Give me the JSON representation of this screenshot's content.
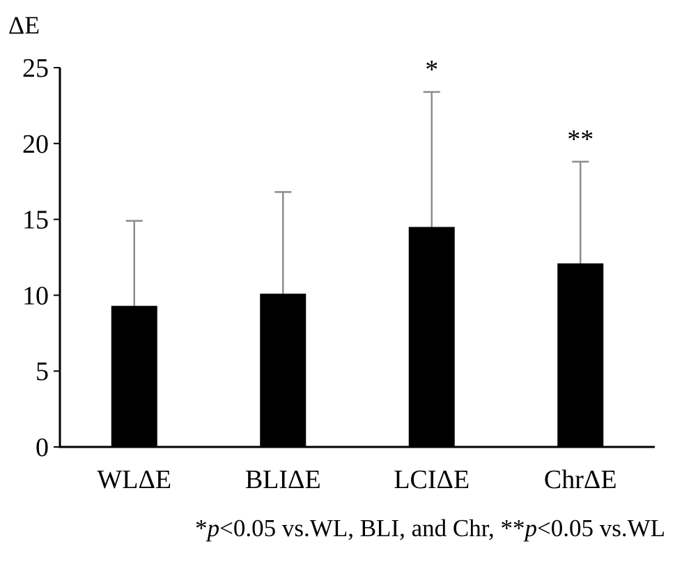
{
  "chart_data": {
    "type": "bar",
    "ylabel": "ΔE",
    "xlabel": "",
    "ylim": [
      0,
      25
    ],
    "yticks": [
      0,
      5,
      10,
      15,
      20,
      25
    ],
    "categories": [
      "WLΔE",
      "BLIΔE",
      "LCIΔE",
      "ChrΔE"
    ],
    "values": [
      9.3,
      10.1,
      14.5,
      12.1
    ],
    "error_upper": [
      14.9,
      16.8,
      23.4,
      18.8
    ],
    "significance": [
      "",
      "",
      "*",
      "**"
    ],
    "bar_color": "#000000",
    "error_color": "#8c8c8c",
    "grid": false,
    "legend": "none"
  },
  "footnote": {
    "part1": "*",
    "p1": "p",
    "part2": "<0.05 vs.WL, BLI, and Chr, **",
    "p2": "p",
    "part3": "<0.05 vs.WL"
  }
}
